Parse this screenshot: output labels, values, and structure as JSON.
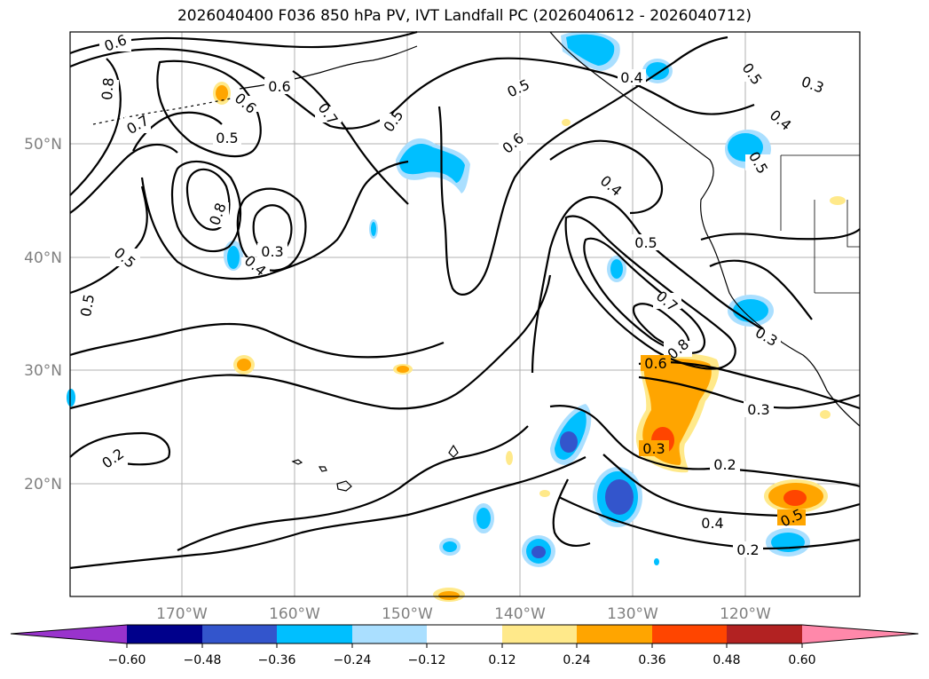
{
  "title": "2026040400 F036 850 hPa PV, IVT Landfall PC (2026040612 - 2026040712)",
  "map": {
    "lat_labels": [
      "50°N",
      "40°N",
      "30°N",
      "20°N"
    ],
    "lon_labels": [
      "170°W",
      "160°W",
      "150°W",
      "140°W",
      "130°W",
      "120°W"
    ],
    "contour_labels": [
      "0.6",
      "0.8",
      "0.7",
      "0.6",
      "0.6",
      "0.5",
      "0.7",
      "0.5",
      "0.5",
      "0.6",
      "0.4",
      "0.5",
      "0.3",
      "0.4",
      "0.5",
      "0.8",
      "0.5",
      "0.3",
      "0.4",
      "0.4",
      "0.5",
      "0.5",
      "0.7",
      "0.8",
      "0.6",
      "0.3",
      "0.3",
      "0.3",
      "0.2",
      "0.2",
      "0.4",
      "0.5",
      "0.2"
    ],
    "colors": {
      "land_outline": "#000000",
      "gridline": "#b0b0b0"
    }
  },
  "colorbar": {
    "tick_labels": [
      "−0.60",
      "−0.48",
      "−0.36",
      "−0.24",
      "−0.12",
      "0.12",
      "0.24",
      "0.36",
      "0.48",
      "0.60"
    ],
    "colors": [
      "#9933cc",
      "#00008b",
      "#3355cc",
      "#00bfff",
      "#aadfff",
      "#ffffff",
      "#ffe98a",
      "#ffa500",
      "#ff4500",
      "#b22222",
      "#ff88aa"
    ]
  }
}
